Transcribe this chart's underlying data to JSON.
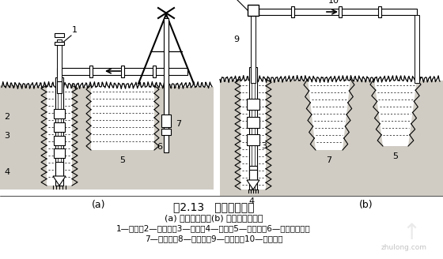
{
  "bg_color": "#f0ede8",
  "diagram_bg": "#ffffff",
  "ground_color": "#d0ccc4",
  "mud_color": "#e8e4dc",
  "title": "图2.13   循环排渣方法",
  "subtitle": "(a) 正循环排渣；(b) 泵举反循环排渣",
  "legend_line1": "1—钻杆；2—送水管；3—主机；4—钻头；5—沉淀池；6—潜水泥浆泵；",
  "legend_line2": "7—泥浆池；8—砂石泵；9—抽渣管；10—排渣胶管",
  "label_a": "(a)",
  "label_b": "(b)",
  "watermark": "zhulong.com",
  "title_fontsize": 10,
  "subtitle_fontsize": 8,
  "legend_fontsize": 7.5
}
